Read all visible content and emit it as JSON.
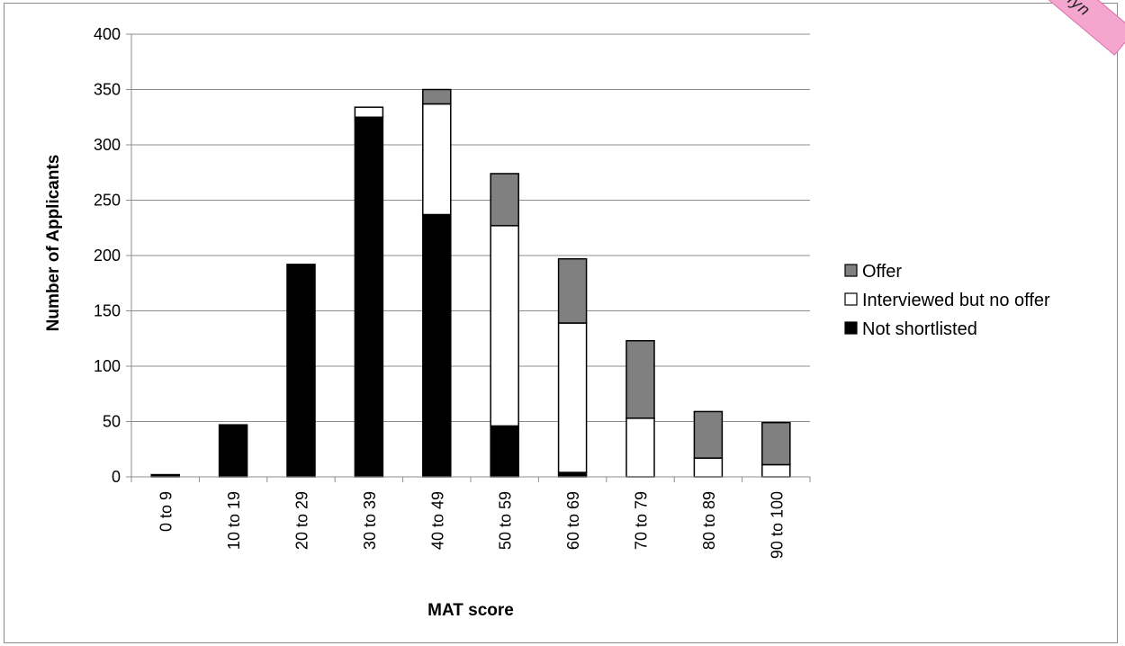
{
  "chart_data": {
    "type": "bar",
    "stacked": true,
    "categories": [
      "0 to 9",
      "10 to 19",
      "20 to 29",
      "30 to 39",
      "40 to 49",
      "50 to 59",
      "60 to 69",
      "70 to 79",
      "80 to 89",
      "90 to 100"
    ],
    "series": [
      {
        "name": "Not shortlisted",
        "color": "#000000",
        "values": [
          2,
          47,
          192,
          325,
          237,
          46,
          4,
          0,
          0,
          0
        ]
      },
      {
        "name": "Interviewed but no offer",
        "color": "#ffffff",
        "values": [
          0,
          0,
          0,
          9,
          100,
          181,
          135,
          53,
          17,
          11
        ]
      },
      {
        "name": "Offer",
        "color": "#808080",
        "values": [
          0,
          0,
          0,
          0,
          13,
          47,
          58,
          70,
          42,
          38
        ]
      }
    ],
    "xlabel": "MAT score",
    "ylabel": "Number of Applicants",
    "ylim": [
      0,
      400
    ],
    "yticks": [
      0,
      50,
      100,
      150,
      200,
      250,
      300,
      350,
      400
    ],
    "grid": true,
    "legend_position": "right",
    "legend_order": [
      "Offer",
      "Interviewed but no offer",
      "Not shortlisted"
    ]
  },
  "stamp": {
    "text": "nyn"
  }
}
